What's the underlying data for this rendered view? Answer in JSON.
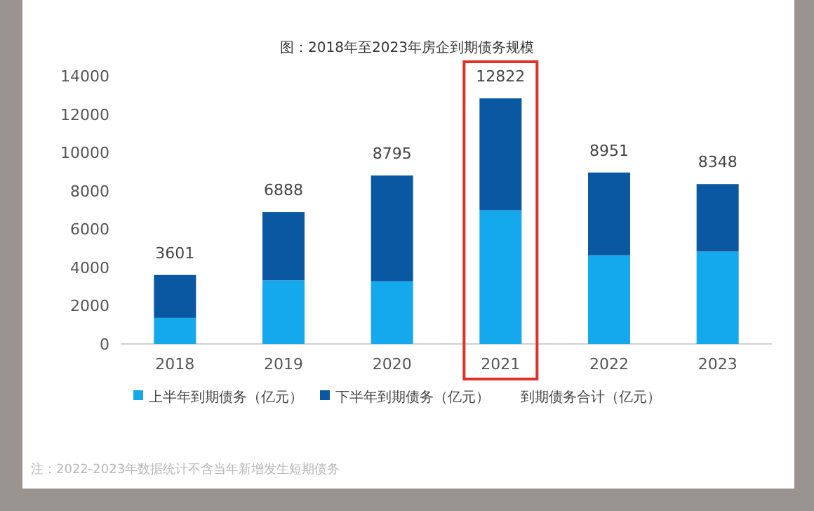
{
  "chart_data": {
    "type": "bar",
    "title": "图：2018年至2023年房企到期债务规模",
    "stacked": true,
    "categories": [
      "2018",
      "2019",
      "2020",
      "2021",
      "2022",
      "2023"
    ],
    "series": [
      {
        "name": "上半年到期债务（亿元）",
        "color": "#14a9ec",
        "values": [
          1360,
          3320,
          3270,
          6980,
          4630,
          4820
        ]
      },
      {
        "name": "下半年到期债务（亿元）",
        "color": "#0b58a2",
        "values": [
          2241,
          3568,
          5525,
          5842,
          4321,
          3528
        ]
      }
    ],
    "totals": [
      "3601",
      "6888",
      "8795",
      "12822",
      "8951",
      "8348"
    ],
    "ylim": [
      0,
      14000
    ],
    "yticks": [
      0,
      2000,
      4000,
      6000,
      8000,
      10000,
      12000,
      14000
    ],
    "grid": false,
    "legend": "bottom",
    "annotations": [
      "到期债务合计（亿元）",
      "注：2022-2023年数据统计不含当年新增发生短期债务"
    ]
  }
}
